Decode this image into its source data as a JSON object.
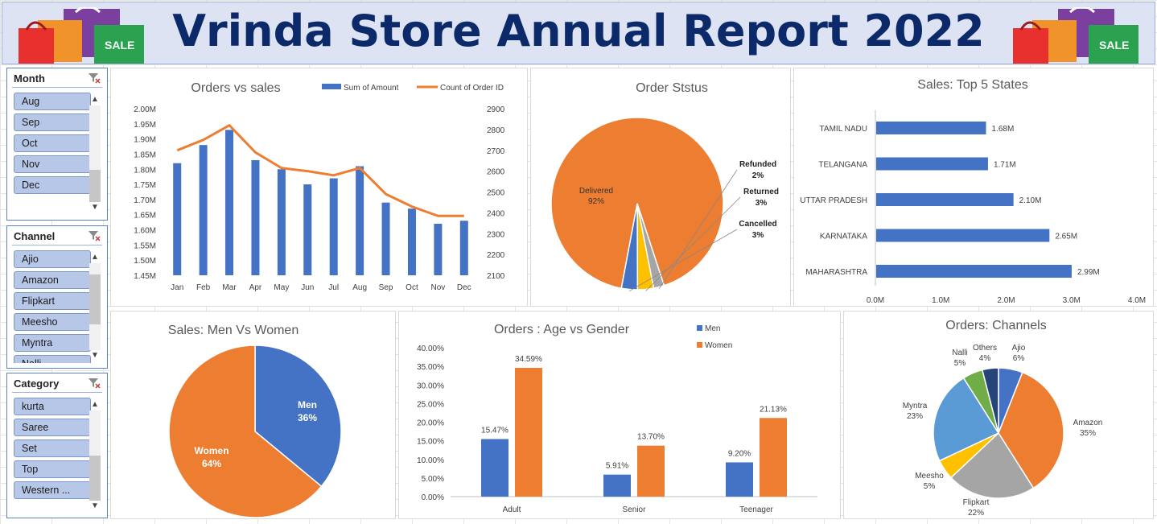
{
  "banner": {
    "title": "Vrinda Store Annual Report 2022",
    "bag_text": "SALE"
  },
  "slicers": [
    {
      "title": "Month",
      "items": [
        "Aug",
        "Sep",
        "Oct",
        "Nov",
        "Dec"
      ]
    },
    {
      "title": "Channel",
      "items": [
        "Ajio",
        "Amazon",
        "Flipkart",
        "Meesho",
        "Myntra",
        "Nalli"
      ]
    },
    {
      "title": "Category",
      "items": [
        "kurta",
        "Saree",
        "Set",
        "Top",
        "Western ..."
      ]
    }
  ],
  "colors": {
    "blue": "#4472c4",
    "orange": "#ed7d31",
    "gray": "#a5a5a5",
    "yellow": "#ffc000",
    "lightblue": "#5b9bd5",
    "green": "#70ad47",
    "navy": "#264478"
  },
  "icons": {
    "filter": "clear-filter-icon",
    "scroll_up": "chevron-up-icon",
    "scroll_down": "chevron-down-icon"
  },
  "chart_data": [
    {
      "id": "orders_vs_sales",
      "type": "bar",
      "title": "Orders vs sales",
      "categories": [
        "Jan",
        "Feb",
        "Mar",
        "Apr",
        "May",
        "Jun",
        "Jul",
        "Aug",
        "Sep",
        "Oct",
        "Nov",
        "Dec"
      ],
      "series": [
        {
          "name": "Sum of Amount",
          "type": "bar",
          "axis": "left",
          "values": [
            1.82,
            1.88,
            1.93,
            1.83,
            1.8,
            1.75,
            1.77,
            1.81,
            1.69,
            1.67,
            1.62,
            1.63
          ]
        },
        {
          "name": "Count of Order ID",
          "type": "line",
          "axis": "right",
          "values": [
            2700,
            2750,
            2820,
            2690,
            2615,
            2600,
            2580,
            2615,
            2490,
            2430,
            2385,
            2385
          ]
        }
      ],
      "y_left": {
        "ticks": [
          "2.00M",
          "1.95M",
          "1.90M",
          "1.85M",
          "1.80M",
          "1.75M",
          "1.70M",
          "1.65M",
          "1.60M",
          "1.55M",
          "1.50M",
          "1.45M"
        ],
        "ylim": [
          1.45,
          2.0
        ]
      },
      "y_right": {
        "ticks": [
          "2900",
          "2800",
          "2700",
          "2600",
          "2500",
          "2400",
          "2300",
          "2200",
          "2100"
        ],
        "ylim": [
          2100,
          2900
        ]
      },
      "legend": "top-right"
    },
    {
      "id": "order_status",
      "type": "pie",
      "title": "Order Ststus",
      "slices": [
        {
          "name": "Delivered",
          "value": 92,
          "label": "92%"
        },
        {
          "name": "Refunded",
          "value": 2,
          "label": "2%"
        },
        {
          "name": "Returned",
          "value": 3,
          "label": "3%"
        },
        {
          "name": "Cancelled",
          "value": 3,
          "label": "3%"
        }
      ]
    },
    {
      "id": "top_states",
      "type": "bar",
      "orientation": "horizontal",
      "title": "Sales: Top 5 States",
      "categories": [
        "TAMIL NADU",
        "TELANGANA",
        "UTTAR PRADESH",
        "KARNATAKA",
        "MAHARASHTRA"
      ],
      "values": [
        1.68,
        1.71,
        2.1,
        2.65,
        2.99
      ],
      "value_labels": [
        "1.68M",
        "1.71M",
        "2.10M",
        "2.65M",
        "2.99M"
      ],
      "x_ticks": [
        "0.0M",
        "1.0M",
        "2.0M",
        "3.0M",
        "4.0M"
      ],
      "xlim": [
        0,
        4
      ]
    },
    {
      "id": "men_vs_women",
      "type": "pie",
      "title": "Sales: Men Vs Women",
      "slices": [
        {
          "name": "Men",
          "value": 36,
          "label": "36%"
        },
        {
          "name": "Women",
          "value": 64,
          "label": "64%"
        }
      ]
    },
    {
      "id": "age_vs_gender",
      "type": "bar",
      "title": "Orders : Age vs Gender",
      "categories": [
        "Adult",
        "Senior",
        "Teenager"
      ],
      "series": [
        {
          "name": "Men",
          "values": [
            15.47,
            5.91,
            9.2
          ],
          "labels": [
            "15.47%",
            "5.91%",
            "9.20%"
          ]
        },
        {
          "name": "Women",
          "values": [
            34.59,
            13.7,
            21.13
          ],
          "labels": [
            "34.59%",
            "13.70%",
            "21.13%"
          ]
        }
      ],
      "y_ticks": [
        "40.00%",
        "35.00%",
        "30.00%",
        "25.00%",
        "20.00%",
        "15.00%",
        "10.00%",
        "5.00%",
        "0.00%"
      ],
      "ylim": [
        0,
        40
      ],
      "legend": "top-right"
    },
    {
      "id": "channels",
      "type": "pie",
      "title": "Orders: Channels",
      "slices": [
        {
          "name": "Ajio",
          "value": 6,
          "label": "6%"
        },
        {
          "name": "Amazon",
          "value": 35,
          "label": "35%"
        },
        {
          "name": "Flipkart",
          "value": 22,
          "label": "22%"
        },
        {
          "name": "Meesho",
          "value": 5,
          "label": "5%"
        },
        {
          "name": "Myntra",
          "value": 23,
          "label": "23%"
        },
        {
          "name": "Nalli",
          "value": 5,
          "label": "5%"
        },
        {
          "name": "Others",
          "value": 4,
          "label": "4%"
        }
      ]
    }
  ]
}
